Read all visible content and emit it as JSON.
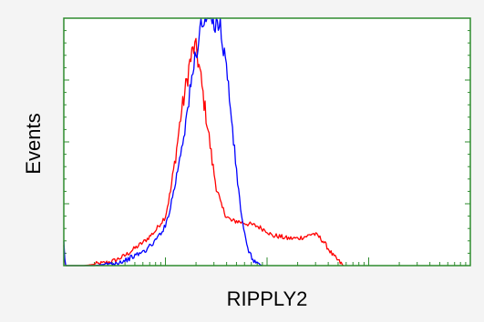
{
  "chart_data": {
    "type": "line",
    "xlabel": "RIPPLY2",
    "ylabel": "Events",
    "x_scale": "log",
    "grid": false,
    "legend": "none",
    "colors": {
      "frame": "#2e8b2e",
      "background": "#f4f4f4",
      "plot_background": "#ffffff"
    },
    "x_range": [
      0,
      4
    ],
    "y_range": [
      0,
      100
    ],
    "series": [
      {
        "color": "#ff0000",
        "points": [
          [
            0.0,
            8
          ],
          [
            0.01,
            2
          ],
          [
            0.02,
            0
          ],
          [
            0.1,
            0
          ],
          [
            0.2,
            0
          ],
          [
            0.3,
            0.5
          ],
          [
            0.4,
            1
          ],
          [
            0.5,
            2
          ],
          [
            0.6,
            4
          ],
          [
            0.7,
            7
          ],
          [
            0.8,
            10
          ],
          [
            0.9,
            14
          ],
          [
            1.0,
            20
          ],
          [
            1.05,
            30
          ],
          [
            1.1,
            44
          ],
          [
            1.15,
            60
          ],
          [
            1.2,
            72
          ],
          [
            1.24,
            82
          ],
          [
            1.28,
            88
          ],
          [
            1.31,
            86
          ],
          [
            1.34,
            78
          ],
          [
            1.38,
            66
          ],
          [
            1.42,
            55
          ],
          [
            1.46,
            42
          ],
          [
            1.5,
            32
          ],
          [
            1.55,
            24
          ],
          [
            1.6,
            20
          ],
          [
            1.65,
            18
          ],
          [
            1.7,
            18
          ],
          [
            1.8,
            17
          ],
          [
            1.9,
            16
          ],
          [
            2.0,
            14
          ],
          [
            2.05,
            12
          ],
          [
            2.1,
            12
          ],
          [
            2.2,
            11
          ],
          [
            2.3,
            11
          ],
          [
            2.4,
            12
          ],
          [
            2.45,
            13
          ],
          [
            2.5,
            12
          ],
          [
            2.55,
            10
          ],
          [
            2.6,
            7
          ],
          [
            2.65,
            4
          ],
          [
            2.7,
            2
          ],
          [
            2.75,
            0
          ]
        ]
      },
      {
        "color": "#0000ff",
        "points": [
          [
            0.0,
            9
          ],
          [
            0.01,
            2
          ],
          [
            0.02,
            0
          ],
          [
            0.2,
            0
          ],
          [
            0.3,
            0
          ],
          [
            0.4,
            0.5
          ],
          [
            0.5,
            1
          ],
          [
            0.6,
            2
          ],
          [
            0.7,
            4
          ],
          [
            0.8,
            6
          ],
          [
            0.9,
            10
          ],
          [
            1.0,
            16
          ],
          [
            1.05,
            24
          ],
          [
            1.1,
            34
          ],
          [
            1.15,
            46
          ],
          [
            1.2,
            58
          ],
          [
            1.25,
            72
          ],
          [
            1.3,
            86
          ],
          [
            1.34,
            95
          ],
          [
            1.38,
            100
          ],
          [
            1.42,
            100
          ],
          [
            1.46,
            100
          ],
          [
            1.5,
            100
          ],
          [
            1.53,
            98
          ],
          [
            1.56,
            92
          ],
          [
            1.6,
            80
          ],
          [
            1.64,
            64
          ],
          [
            1.68,
            46
          ],
          [
            1.72,
            30
          ],
          [
            1.76,
            17
          ],
          [
            1.8,
            8
          ],
          [
            1.85,
            3
          ],
          [
            1.9,
            1
          ],
          [
            1.95,
            0
          ]
        ]
      }
    ]
  }
}
